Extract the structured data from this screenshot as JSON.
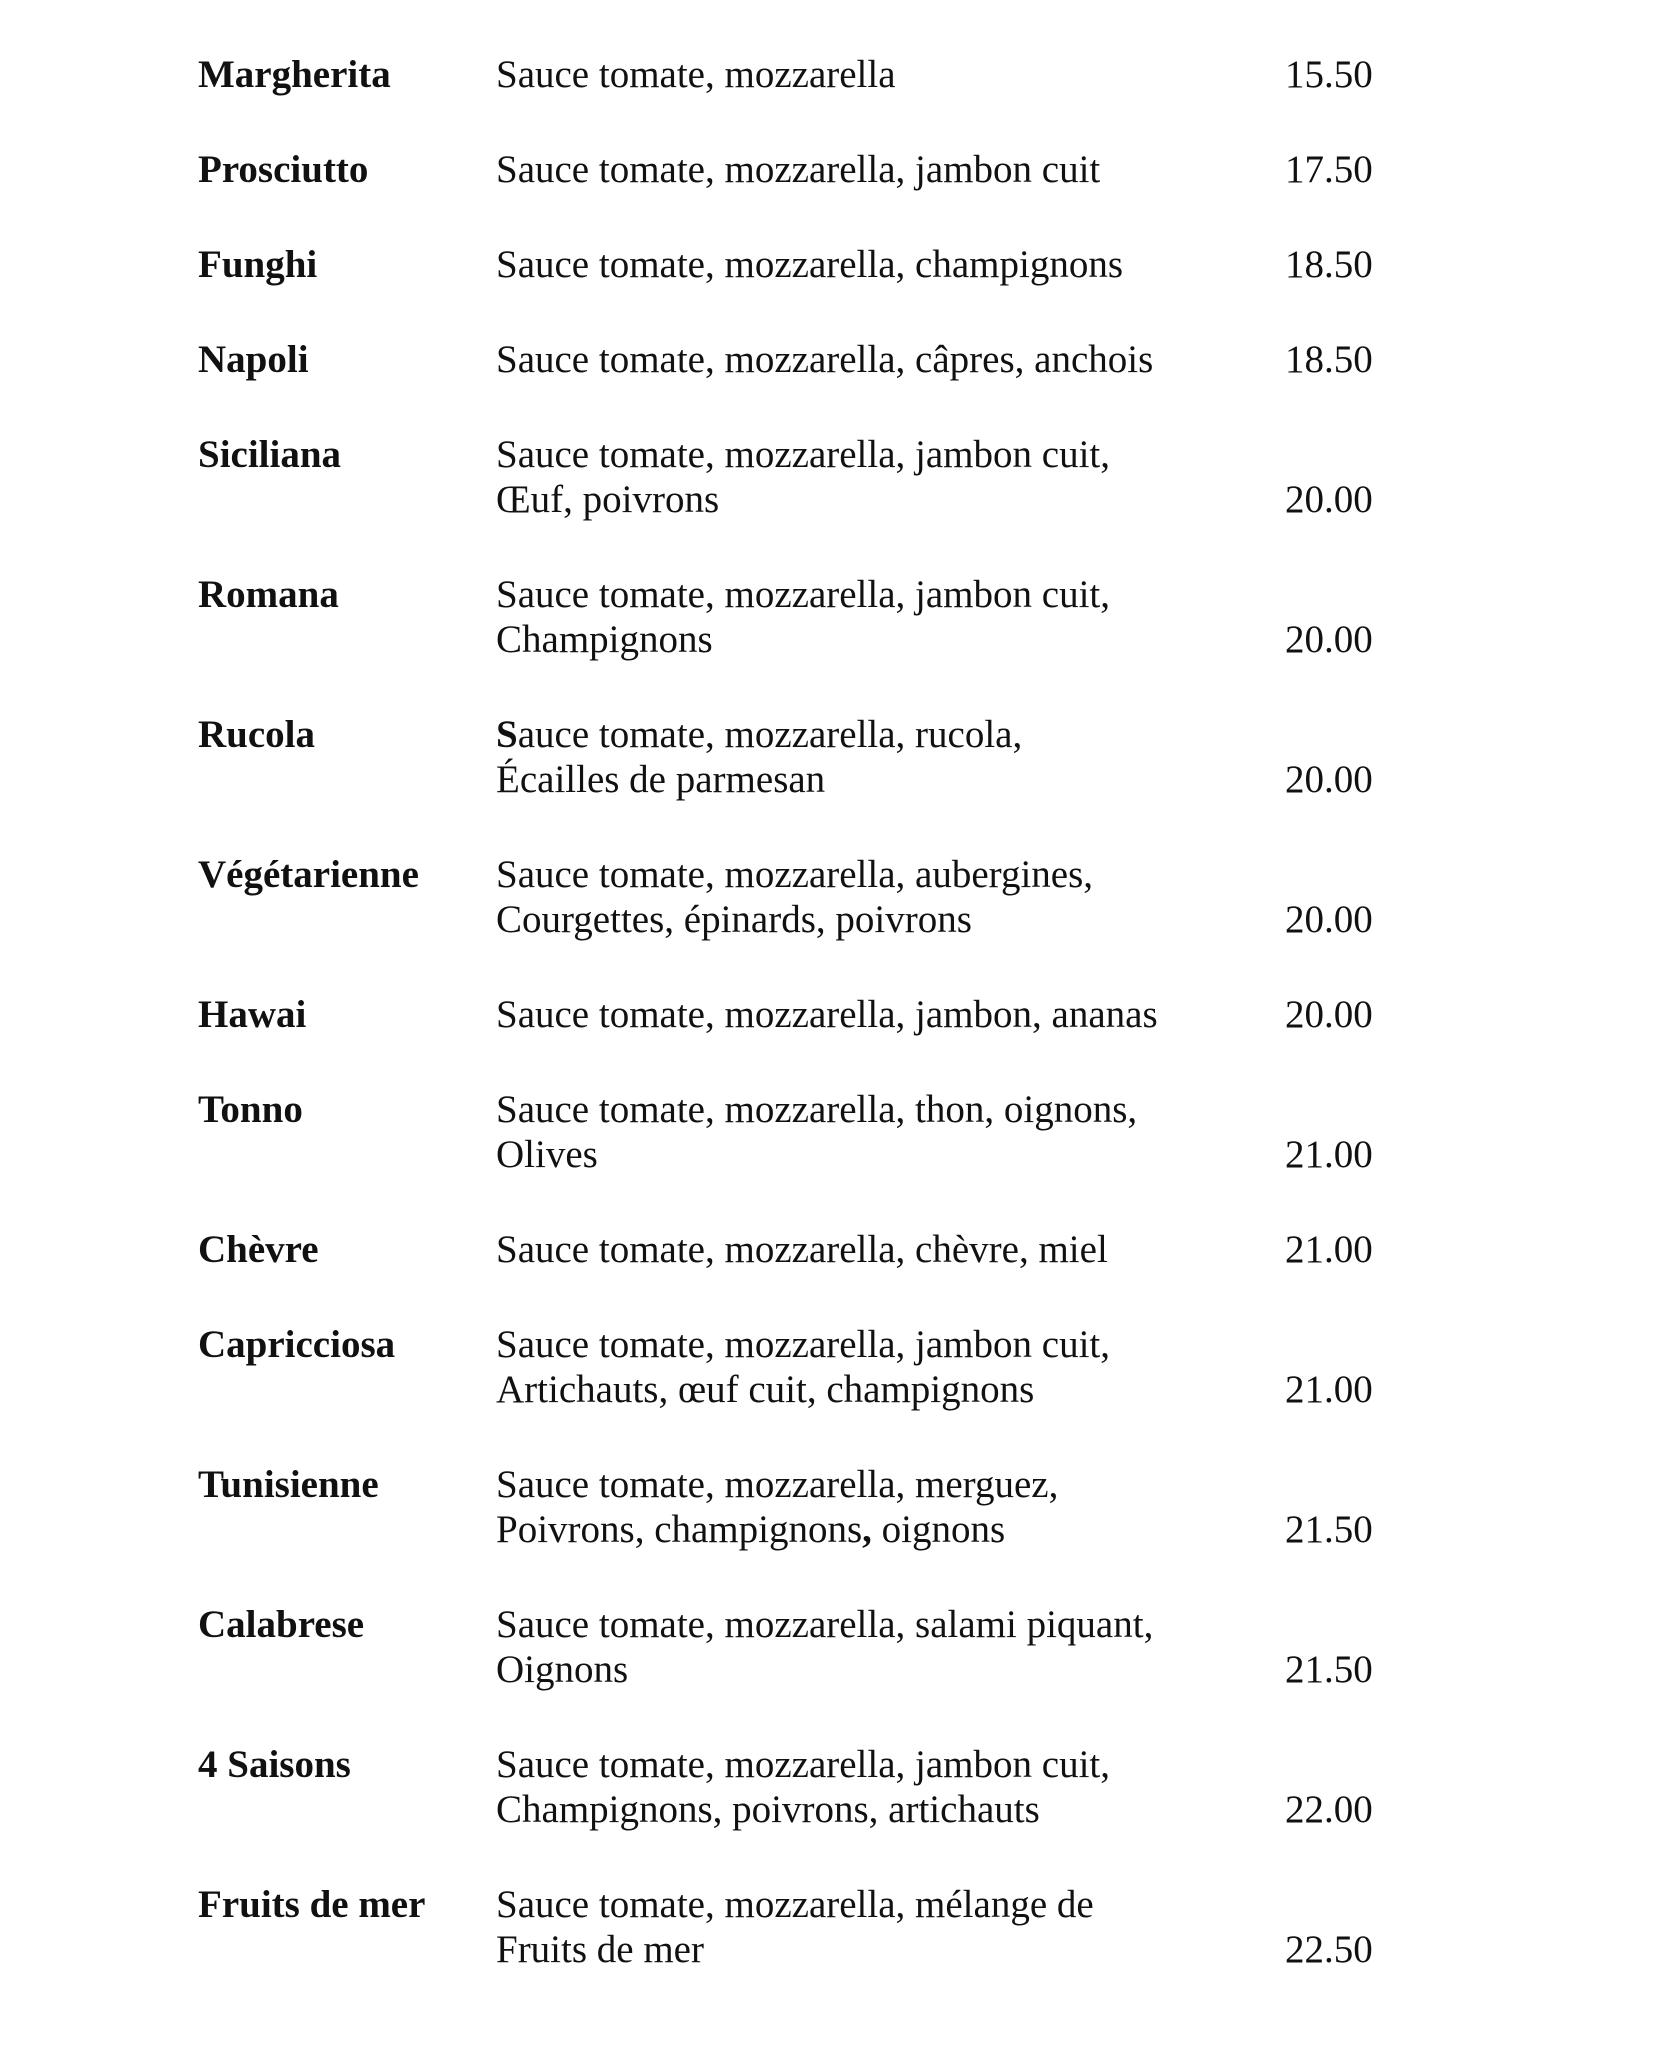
{
  "page": {
    "background": "#ffffff",
    "text_color": "#111111"
  },
  "menu": {
    "items": [
      {
        "name": "Margherita",
        "line1": "Sauce tomate, mozzarella",
        "price": "15.50"
      },
      {
        "name": "Prosciutto",
        "line1": "Sauce tomate, mozzarella, jambon cuit",
        "price": "17.50"
      },
      {
        "name": "Funghi",
        "line1": "Sauce tomate, mozzarella, champignons",
        "price": "18.50"
      },
      {
        "name": "Napoli",
        "line1": "Sauce tomate, mozzarella, câpres, anchois",
        "price": "18.50"
      },
      {
        "name": "Siciliana",
        "line1": "Sauce tomate, mozzarella, jambon cuit,",
        "line2": "Œuf, poivrons",
        "price": "20.00"
      },
      {
        "name": "Romana",
        "line1": "Sauce tomate, mozzarella, jambon cuit,",
        "line2": "Champignons",
        "price": "20.00"
      },
      {
        "name": "Rucola",
        "line1_bold": "S",
        "line1_rest": "auce tomate, mozzarella, rucola,",
        "line2": "Écailles de parmesan",
        "price": "20.00"
      },
      {
        "name": "Végétarienne",
        "line1": "Sauce tomate, mozzarella, aubergines,",
        "line2": "Courgettes, épinards, poivrons",
        "price": "20.00"
      },
      {
        "name": "Hawai",
        "line1": "Sauce tomate, mozzarella, jambon, ananas",
        "price": "20.00"
      },
      {
        "name": "Tonno",
        "line1": "Sauce tomate, mozzarella, thon, oignons,",
        "line2": "Olives",
        "price": "21.00"
      },
      {
        "name": "Chèvre",
        "line1": "Sauce tomate, mozzarella, chèvre, miel",
        "price": "21.00"
      },
      {
        "name": "Capricciosa",
        "line1": "Sauce tomate, mozzarella, jambon cuit,",
        "line2": "Artichauts, œuf cuit, champignons",
        "price": "21.00"
      },
      {
        "name": "Tunisienne",
        "line1": "Sauce tomate, mozzarella, merguez,",
        "line2_pre": "Poivrons, champignons",
        "line2_bold": ",",
        "line2_post": " oignons",
        "price": "21.50"
      },
      {
        "name": "Calabrese",
        "line1": "Sauce tomate, mozzarella, salami piquant,",
        "line2": "Oignons",
        "price": "21.50"
      },
      {
        "name": "4 Saisons",
        "line1": "Sauce tomate, mozzarella, jambon cuit,",
        "line2": "Champignons, poivrons, artichauts",
        "price": "22.00"
      },
      {
        "name": "Fruits de mer",
        "line1": "Sauce tomate, mozzarella, mélange de",
        "line2": "Fruits de mer",
        "price": "22.50"
      }
    ]
  }
}
